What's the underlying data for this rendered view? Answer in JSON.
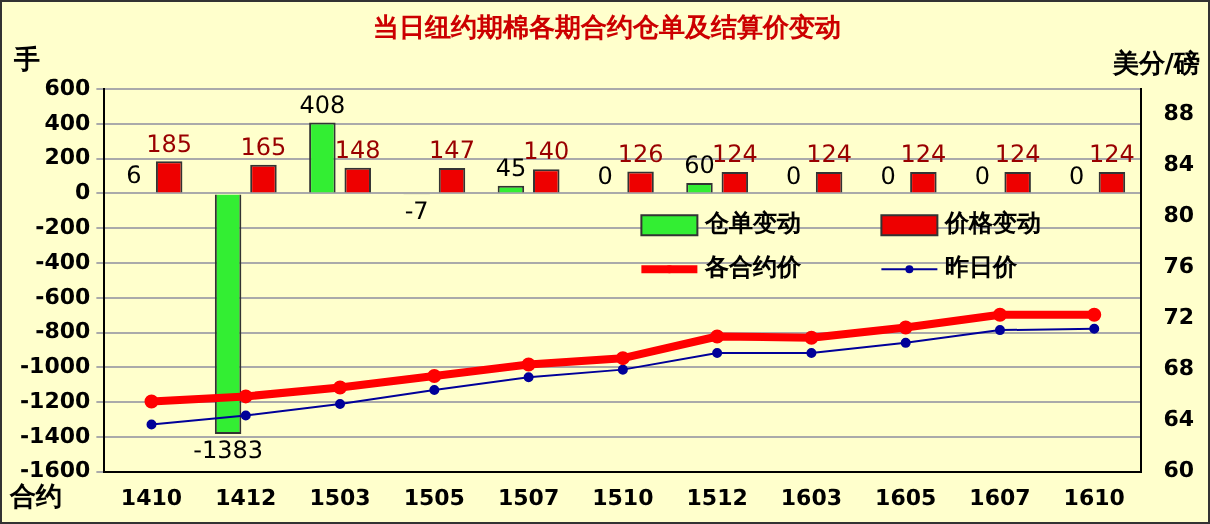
{
  "chart_data": {
    "type": "bar",
    "title": "当日纽约期棉各期合约仓单及结算价变动",
    "xlabel": "合约",
    "ylabel": "手",
    "y2label": "美分/磅",
    "categories": [
      "1410",
      "1412",
      "1503",
      "1505",
      "1507",
      "1510",
      "1512",
      "1603",
      "1605",
      "1607",
      "1610"
    ],
    "series": [
      {
        "name": "仓单变动",
        "color": "#33ee33",
        "values": [
          6,
          -1383,
          408,
          -7,
          45,
          0,
          60,
          0,
          0,
          0,
          0
        ],
        "value_labels": [
          "6",
          "-1383",
          "408",
          "-7",
          "45",
          "0",
          "60",
          "0",
          "0",
          "0",
          "0"
        ]
      },
      {
        "name": "价格变动",
        "color": "#ee0000",
        "values": [
          185,
          165,
          148,
          147,
          140,
          126,
          124,
          124,
          124,
          124,
          124
        ],
        "value_labels": [
          "185",
          "165",
          "148",
          "147",
          "140",
          "126",
          "124",
          "124",
          "124",
          "124",
          "124"
        ]
      },
      {
        "name": "各合约价",
        "type": "line",
        "axis": "y2",
        "color": "#ff0000",
        "marker": "circle",
        "values": [
          65.5,
          65.9,
          66.6,
          67.5,
          68.4,
          68.9,
          70.6,
          70.5,
          71.3,
          72.3,
          72.3
        ]
      },
      {
        "name": "昨日价",
        "type": "line",
        "axis": "y2",
        "color": "#000099",
        "marker": "circle",
        "values": [
          63.7,
          64.4,
          65.3,
          66.4,
          67.4,
          68.0,
          69.3,
          69.3,
          70.1,
          71.1,
          71.2
        ]
      }
    ],
    "ylim": [
      -1600,
      600
    ],
    "yticks": [
      -1600,
      -1400,
      -1200,
      -1000,
      -800,
      -600,
      -400,
      -200,
      0,
      200,
      400,
      600
    ],
    "y2lim": [
      60,
      90
    ],
    "y2ticks": [
      60,
      64,
      68,
      72,
      76,
      80,
      84,
      88
    ],
    "grid": "y",
    "legend": "right"
  }
}
